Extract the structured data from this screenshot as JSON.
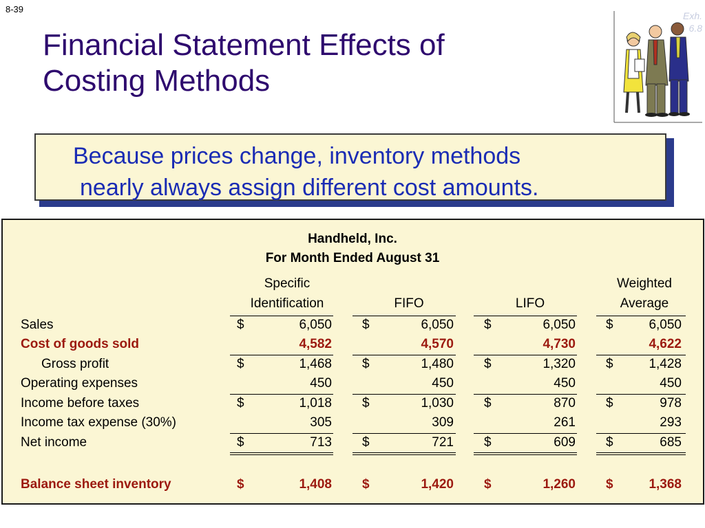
{
  "slide": {
    "number": "8-39",
    "exhibit": "Exh. 6.8"
  },
  "title": {
    "line1": "Financial Statement Effects of",
    "line2": "Costing Methods"
  },
  "clipart": {
    "icon": "business-people-clipart"
  },
  "callout": {
    "line1": "Because prices change, inventory methods",
    "line2": "nearly always assign different cost amounts."
  },
  "statement": {
    "company": "Handheld, Inc.",
    "period": "For Month Ended August 31",
    "columns": [
      {
        "line1": "Specific",
        "line2": "Identification"
      },
      {
        "line1": "",
        "line2": "FIFO"
      },
      {
        "line1": "",
        "line2": "LIFO"
      },
      {
        "line1": "Weighted",
        "line2": "Average"
      }
    ],
    "rows": [
      {
        "label": "Sales",
        "values": [
          "6,050",
          "6,050",
          "6,050",
          "6,050"
        ],
        "dollar": "$"
      },
      {
        "label": "Cost of goods sold",
        "values": [
          "4,582",
          "4,570",
          "4,730",
          "4,622"
        ],
        "dollar": ""
      },
      {
        "label": "Gross profit",
        "values": [
          "1,468",
          "1,480",
          "1,320",
          "1,428"
        ],
        "dollar": "$"
      },
      {
        "label": "Operating expenses",
        "values": [
          "450",
          "450",
          "450",
          "450"
        ],
        "dollar": ""
      },
      {
        "label": "Income before taxes",
        "values": [
          "1,018",
          "1,030",
          "870",
          "978"
        ],
        "dollar": "$"
      },
      {
        "label": "Income tax expense (30%)",
        "values": [
          "305",
          "309",
          "261",
          "293"
        ],
        "dollar": ""
      },
      {
        "label": "Net income",
        "values": [
          "713",
          "721",
          "609",
          "685"
        ],
        "dollar": "$"
      },
      {
        "label": "Balance sheet inventory",
        "values": [
          "1,408",
          "1,420",
          "1,260",
          "1,368"
        ],
        "dollar": "$"
      }
    ]
  },
  "colors": {
    "title": "#2e0a6e",
    "callout_text": "#1a2cb4",
    "highlight_red": "#9c1a10",
    "panel_bg": "#fbf6d4"
  }
}
